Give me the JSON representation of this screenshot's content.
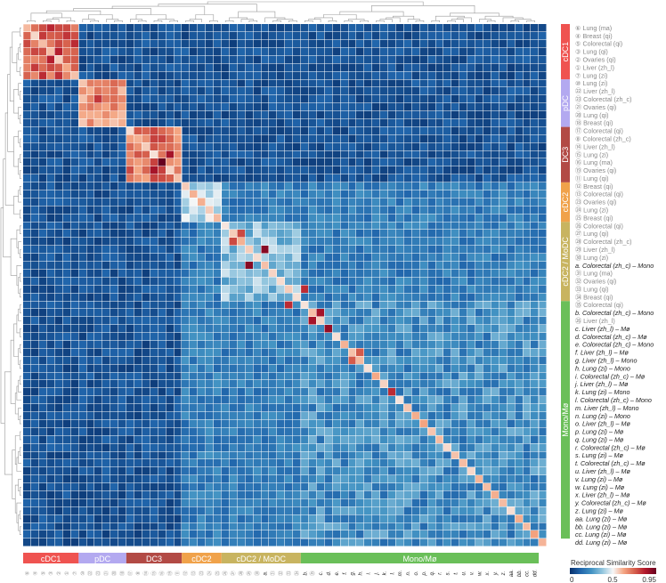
{
  "chart_data": {
    "type": "heatmap",
    "title": "",
    "colorbar": {
      "title": "Reciprocal Similarity Score",
      "min": 0,
      "max": 0.95,
      "ticks": [
        "0",
        "0.5",
        "0.95"
      ],
      "colors": [
        "#08306b",
        "#2166ac",
        "#4393c3",
        "#92c5de",
        "#f7f7f7",
        "#f4a582",
        "#d6604d",
        "#b2182b",
        "#67001f"
      ]
    },
    "dendrograms": {
      "top": true,
      "left": true
    },
    "groups": [
      {
        "name": "cDC1",
        "color": "#ef5350",
        "start": 0,
        "count": 7,
        "self": 0.72
      },
      {
        "name": "pDC",
        "color": "#b3a9f0",
        "start": 7,
        "count": 6,
        "self": 0.62
      },
      {
        "name": "DC3",
        "color": "#b24a45",
        "start": 13,
        "count": 7,
        "self": 0.68
      },
      {
        "name": "cDC2",
        "color": "#f0a24a",
        "start": 20,
        "count": 5,
        "self": 0.4
      },
      {
        "name": "cDC2 / MoDC",
        "color": "#c8b460",
        "start": 25,
        "count": 10,
        "self": 0.34
      },
      {
        "name": "Mono/Mø",
        "color": "#6abf59",
        "start": 35,
        "count": 30,
        "self": 0.22
      }
    ],
    "rows": [
      {
        "id": "⑥",
        "label": "Lung (ma)",
        "group": "cDC1"
      },
      {
        "id": "④",
        "label": "Breast (qi)",
        "group": "cDC1"
      },
      {
        "id": "⑤",
        "label": "Colorectal (qi)",
        "group": "cDC1"
      },
      {
        "id": "③",
        "label": "Lung (qi)",
        "group": "cDC1"
      },
      {
        "id": "②",
        "label": "Ovaries (qi)",
        "group": "cDC1"
      },
      {
        "id": "①",
        "label": "Liver (zh_l)",
        "group": "cDC1"
      },
      {
        "id": "⑦",
        "label": "Lung (zi)",
        "group": "cDC1"
      },
      {
        "id": "⑩",
        "label": "Lung (zi)",
        "group": "pDC"
      },
      {
        "id": "㉒",
        "label": "Liver (zh_l)",
        "group": "pDC"
      },
      {
        "id": "㉓",
        "label": "Colorectal (zh_c)",
        "group": "pDC"
      },
      {
        "id": "㉑",
        "label": "Ovaries (qi)",
        "group": "pDC"
      },
      {
        "id": "⑳",
        "label": "Lung (qi)",
        "group": "pDC"
      },
      {
        "id": "⑱",
        "label": "Breast (qi)",
        "group": "pDC"
      },
      {
        "id": "⑰",
        "label": "Colorectal (qi)",
        "group": "DC3"
      },
      {
        "id": "⑧",
        "label": "Colorectal (zh_c)",
        "group": "DC3"
      },
      {
        "id": "⑭",
        "label": "Liver (zh_l)",
        "group": "DC3"
      },
      {
        "id": "⑮",
        "label": "Lung (zi)",
        "group": "DC3"
      },
      {
        "id": "⑯",
        "label": "Lung (ma)",
        "group": "DC3"
      },
      {
        "id": "⑲",
        "label": "Ovaries (qi)",
        "group": "DC3"
      },
      {
        "id": "⑪",
        "label": "Lung (qi)",
        "group": "DC3"
      },
      {
        "id": "⑫",
        "label": "Breast (qi)",
        "group": "cDC2"
      },
      {
        "id": "⑬",
        "label": "Colorectal (qi)",
        "group": "cDC2"
      },
      {
        "id": "㉓",
        "label": "Ovaries (qi)",
        "group": "cDC2"
      },
      {
        "id": "㉔",
        "label": "Lung (zi)",
        "group": "cDC2"
      },
      {
        "id": "㉕",
        "label": "Breast (qi)",
        "group": "cDC2"
      },
      {
        "id": "㉖",
        "label": "Colorectal (qi)",
        "group": "cDC2 / MoDC"
      },
      {
        "id": "㉗",
        "label": "Lung (qi)",
        "group": "cDC2 / MoDC"
      },
      {
        "id": "㉘",
        "label": "Colorectal (zh_c)",
        "group": "cDC2 / MoDC"
      },
      {
        "id": "㉙",
        "label": "Liver (zh_l)",
        "group": "cDC2 / MoDC"
      },
      {
        "id": "㉚",
        "label": "Lung (zi)",
        "group": "cDC2 / MoDC"
      },
      {
        "id": "a.",
        "label": "Colorectal (zh_c) – Mono",
        "group": "cDC2 / MoDC",
        "italic": true
      },
      {
        "id": "㉛",
        "label": "Lung (ma)",
        "group": "cDC2 / MoDC"
      },
      {
        "id": "㉜",
        "label": "Ovaries (qi)",
        "group": "cDC2 / MoDC"
      },
      {
        "id": "㉝",
        "label": "Lung (qi)",
        "group": "cDC2 / MoDC"
      },
      {
        "id": "㉞",
        "label": "Breast (qi)",
        "group": "cDC2 / MoDC"
      },
      {
        "id": "㉟",
        "label": "Colorectal (qi)",
        "group": "Mono/Mø"
      },
      {
        "id": "b.",
        "label": "Colorectal (zh_c) – Mono",
        "group": "Mono/Mø",
        "italic": true
      },
      {
        "id": "㉖",
        "label": "Liver (zh_l)",
        "group": "Mono/Mø"
      },
      {
        "id": "c.",
        "label": "Liver (zh_l) – Mø",
        "group": "Mono/Mø",
        "italic": true
      },
      {
        "id": "d.",
        "label": "Colorectal (zh_c) – Mø",
        "group": "Mono/Mø",
        "italic": true
      },
      {
        "id": "e.",
        "label": "Colorectal (zh_c) – Mono",
        "group": "Mono/Mø",
        "italic": true
      },
      {
        "id": "f.",
        "label": "Liver (zh_l) – Mø",
        "group": "Mono/Mø",
        "italic": true
      },
      {
        "id": "g.",
        "label": "Liver (zh_l) – Mono",
        "group": "Mono/Mø",
        "italic": true
      },
      {
        "id": "h.",
        "label": "Lung (zi) – Mono",
        "group": "Mono/Mø",
        "italic": true
      },
      {
        "id": "i.",
        "label": "Colorectal (zh_c) – Mø",
        "group": "Mono/Mø",
        "italic": true
      },
      {
        "id": "j.",
        "label": "Liver (zh_l) – Mø",
        "group": "Mono/Mø",
        "italic": true
      },
      {
        "id": "k.",
        "label": "Lung (zi) – Mono",
        "group": "Mono/Mø",
        "italic": true
      },
      {
        "id": "l.",
        "label": "Colorectal (zh_c) – Mono",
        "group": "Mono/Mø",
        "italic": true
      },
      {
        "id": "m.",
        "label": "Liver (zh_l) – Mono",
        "group": "Mono/Mø",
        "italic": true
      },
      {
        "id": "n.",
        "label": "Lung (zi) – Mono",
        "group": "Mono/Mø",
        "italic": true
      },
      {
        "id": "o.",
        "label": "Liver (zh_l) – Mø",
        "group": "Mono/Mø",
        "italic": true
      },
      {
        "id": "p.",
        "label": "Lung (zi) – Mø",
        "group": "Mono/Mø",
        "italic": true
      },
      {
        "id": "q.",
        "label": "Lung (zi) – Mø",
        "group": "Mono/Mø",
        "italic": true
      },
      {
        "id": "r.",
        "label": "Colorectal (zh_c) – Mø",
        "group": "Mono/Mø",
        "italic": true
      },
      {
        "id": "s.",
        "label": "Lung (zi) – Mø",
        "group": "Mono/Mø",
        "italic": true
      },
      {
        "id": "t.",
        "label": "Colorectal (zh_c) – Mø",
        "group": "Mono/Mø",
        "italic": true
      },
      {
        "id": "u.",
        "label": "Liver (zh_l) – Mø",
        "group": "Mono/Mø",
        "italic": true
      },
      {
        "id": "v.",
        "label": "Lung (zi) – Mø",
        "group": "Mono/Mø",
        "italic": true
      },
      {
        "id": "w.",
        "label": "Lung (zi) – Mø",
        "group": "Mono/Mø",
        "italic": true
      },
      {
        "id": "x.",
        "label": "Liver (zh_l) – Mø",
        "group": "Mono/Mø",
        "italic": true
      },
      {
        "id": "y.",
        "label": "Colorectal (zh_c) – Mø",
        "group": "Mono/Mø",
        "italic": true
      },
      {
        "id": "z.",
        "label": "Lung (zi) – Mø",
        "group": "Mono/Mø",
        "italic": true
      },
      {
        "id": "aa.",
        "label": "Lung (zi) – Mø",
        "group": "Mono/Mø",
        "italic": true
      },
      {
        "id": "bb.",
        "label": "Lung (zi) – Mø",
        "group": "Mono/Mø",
        "italic": true
      },
      {
        "id": "cc.",
        "label": "Lung (zi) – Mø",
        "group": "Mono/Mø",
        "italic": true
      },
      {
        "id": "dd.",
        "label": "Lung (zi) – Mø",
        "group": "Mono/Mø",
        "italic": true
      }
    ],
    "columns": [
      "⑥",
      "④",
      "⑤",
      "③",
      "②",
      "①",
      "⑦",
      "⑩",
      "㉒",
      "㉓",
      "㉑",
      "⑳",
      "⑱",
      "⑰",
      "⑧",
      "⑭",
      "⑮",
      "⑯",
      "⑲",
      "⑪",
      "⑫",
      "⑬",
      "㉓",
      "㉔",
      "㉕",
      "㉖",
      "㉗",
      "㉘",
      "㉙",
      "㉚",
      "a.",
      "㉛",
      "㉜",
      "㉝",
      "㉞",
      "b.",
      "㉟",
      "c.",
      "d.",
      "e.",
      "f.",
      "g.",
      "h.",
      "i.",
      "j.",
      "k.",
      "l.",
      "m.",
      "n.",
      "o.",
      "p.",
      "q.",
      "r.",
      "s.",
      "t.",
      "u.",
      "v.",
      "w.",
      "x.",
      "y.",
      "z.",
      "aa.",
      "bb.",
      "cc.",
      "dd."
    ],
    "hotspots": [
      {
        "r": 17,
        "c": 17,
        "v": 0.95
      },
      {
        "r": 3,
        "c": 4,
        "v": 0.82
      },
      {
        "r": 2,
        "c": 6,
        "v": 0.8
      },
      {
        "r": 9,
        "c": 9,
        "v": 0.78
      },
      {
        "r": 16,
        "c": 18,
        "v": 0.85
      },
      {
        "r": 28,
        "c": 30,
        "v": 0.9
      },
      {
        "r": 27,
        "c": 26,
        "v": 0.75
      },
      {
        "r": 33,
        "c": 35,
        "v": 0.8
      },
      {
        "r": 36,
        "c": 37,
        "v": 0.85
      },
      {
        "r": 38,
        "c": 38,
        "v": 0.88
      },
      {
        "r": 41,
        "c": 42,
        "v": 0.72
      },
      {
        "r": 46,
        "c": 46,
        "v": 0.8
      }
    ]
  }
}
